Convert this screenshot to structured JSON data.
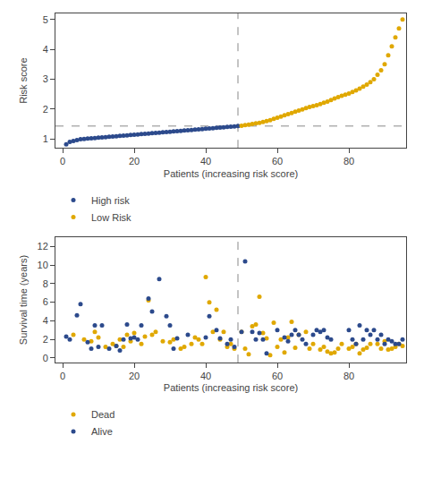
{
  "chart_data": [
    {
      "type": "scatter",
      "xlabel": "Patients (increasing risk score)",
      "ylabel": "Risk score",
      "xlim": [
        -2,
        96
      ],
      "xticks": [
        0,
        20,
        40,
        60,
        80
      ],
      "ylim": [
        0.7,
        5.2
      ],
      "yticks": [
        1,
        2,
        3,
        4,
        5
      ],
      "grid": false,
      "legend": "bottom",
      "reference_lines": {
        "x": 49,
        "y": 1.43,
        "color": "#888888",
        "line_style": "dashed"
      },
      "series": [
        {
          "name": "High risk",
          "color": "#2c4a8c",
          "marker": "circle",
          "x": [
            1,
            2,
            3,
            4,
            5,
            6,
            7,
            8,
            9,
            10,
            11,
            12,
            13,
            14,
            15,
            16,
            17,
            18,
            19,
            20,
            21,
            22,
            23,
            24,
            25,
            26,
            27,
            28,
            29,
            30,
            31,
            32,
            33,
            34,
            35,
            36,
            37,
            38,
            39,
            40,
            41,
            42,
            43,
            44,
            45,
            46,
            47,
            48,
            49
          ],
          "values": [
            0.82,
            0.9,
            0.93,
            0.96,
            0.99,
            1.0,
            1.01,
            1.02,
            1.03,
            1.04,
            1.05,
            1.06,
            1.07,
            1.08,
            1.09,
            1.1,
            1.11,
            1.12,
            1.13,
            1.14,
            1.15,
            1.16,
            1.17,
            1.18,
            1.19,
            1.2,
            1.21,
            1.22,
            1.23,
            1.24,
            1.25,
            1.26,
            1.27,
            1.28,
            1.29,
            1.3,
            1.31,
            1.32,
            1.33,
            1.34,
            1.35,
            1.36,
            1.37,
            1.38,
            1.39,
            1.4,
            1.41,
            1.42,
            1.43
          ]
        },
        {
          "name": "Low Risk",
          "color": "#e0a800",
          "marker": "circle",
          "x": [
            50,
            51,
            52,
            53,
            54,
            55,
            56,
            57,
            58,
            59,
            60,
            61,
            62,
            63,
            64,
            65,
            66,
            67,
            68,
            69,
            70,
            71,
            72,
            73,
            74,
            75,
            76,
            77,
            78,
            79,
            80,
            81,
            82,
            83,
            84,
            85,
            86,
            87,
            88,
            89,
            90,
            91,
            92,
            93,
            94,
            95
          ],
          "values": [
            1.44,
            1.46,
            1.48,
            1.5,
            1.52,
            1.54,
            1.57,
            1.6,
            1.63,
            1.67,
            1.71,
            1.75,
            1.79,
            1.83,
            1.87,
            1.91,
            1.95,
            1.99,
            2.03,
            2.07,
            2.1,
            2.13,
            2.17,
            2.21,
            2.25,
            2.3,
            2.35,
            2.4,
            2.44,
            2.48,
            2.52,
            2.57,
            2.62,
            2.68,
            2.75,
            2.82,
            2.9,
            3.0,
            3.15,
            3.3,
            3.5,
            3.8,
            4.1,
            4.4,
            4.7,
            5.0
          ]
        }
      ]
    },
    {
      "type": "scatter",
      "xlabel": "Patients (increasing risk score)",
      "ylabel": "Survival time (years)",
      "xlim": [
        -2,
        96
      ],
      "xticks": [
        0,
        20,
        40,
        60,
        80
      ],
      "ylim": [
        -0.5,
        13
      ],
      "yticks": [
        0,
        2,
        4,
        6,
        8,
        10,
        12
      ],
      "grid": false,
      "legend": "bottom",
      "reference_lines": {
        "x": 49,
        "color": "#888888",
        "line_style": "dashed"
      },
      "series": [
        {
          "name": "Dead",
          "color": "#e0a800",
          "marker": "circle",
          "x": [
            3,
            6,
            8,
            9,
            10,
            12,
            14,
            15,
            16,
            17,
            18,
            19,
            20,
            22,
            23,
            24,
            25,
            26,
            28,
            30,
            31,
            33,
            34,
            36,
            37,
            38,
            39,
            40,
            41,
            42,
            43,
            44,
            45,
            46,
            47,
            48,
            50,
            51,
            52,
            53,
            54,
            55,
            56,
            57,
            58,
            59,
            60,
            61,
            62,
            63,
            64,
            65,
            66,
            68,
            69,
            70,
            72,
            73,
            74,
            75,
            76,
            77,
            78,
            80,
            81,
            82,
            83,
            84,
            85,
            86,
            88,
            89,
            90,
            91,
            92,
            93,
            94,
            95
          ],
          "values": [
            2.5,
            2.0,
            1.8,
            2.8,
            2.2,
            1.2,
            1.5,
            1.3,
            2.0,
            1.2,
            2.5,
            1.8,
            2.7,
            1.5,
            2.3,
            6.2,
            2.5,
            2.8,
            1.8,
            1.7,
            2.0,
            1.0,
            1.2,
            1.5,
            2.2,
            2.0,
            1.5,
            8.7,
            6.0,
            2.8,
            5.2,
            2.0,
            2.8,
            1.2,
            1.5,
            1.0,
            2.8,
            1.0,
            0.4,
            3.4,
            3.6,
            6.6,
            2.7,
            2.1,
            0.3,
            3.8,
            1.2,
            2.0,
            0.6,
            2.2,
            3.9,
            1.1,
            2.5,
            2.8,
            1.0,
            1.5,
            0.9,
            1.2,
            0.7,
            0.5,
            0.6,
            1.0,
            1.5,
            1.0,
            1.2,
            1.5,
            0.5,
            0.9,
            1.1,
            1.5,
            1.5,
            1.0,
            1.8,
            0.9,
            1.0,
            1.2,
            1.5,
            1.3
          ]
        },
        {
          "name": "Alive",
          "color": "#2c4a8c",
          "marker": "circle",
          "x": [
            1,
            2,
            4,
            5,
            7,
            8,
            9,
            10,
            11,
            13,
            15,
            16,
            17,
            18,
            19,
            20,
            21,
            22,
            24,
            25,
            27,
            29,
            30,
            31,
            32,
            35,
            40,
            41,
            43,
            44,
            46,
            47,
            48,
            50,
            51,
            53,
            54,
            55,
            56,
            57,
            60,
            62,
            63,
            64,
            65,
            66,
            67,
            68,
            70,
            71,
            72,
            73,
            74,
            75,
            80,
            81,
            82,
            83,
            84,
            85,
            86,
            87,
            88,
            89,
            90,
            91,
            92,
            93,
            94,
            95
          ],
          "values": [
            2.3,
            2.0,
            4.6,
            5.8,
            1.7,
            1.0,
            3.5,
            1.2,
            3.5,
            1.0,
            1.3,
            0.8,
            2.0,
            3.6,
            2.1,
            2.2,
            2.0,
            3.5,
            6.4,
            5.0,
            8.5,
            4.5,
            3.5,
            1.0,
            2.1,
            2.5,
            2.2,
            4.5,
            3.0,
            2.1,
            1.5,
            2.0,
            1.2,
            2.8,
            10.4,
            2.8,
            2.0,
            2.7,
            2.0,
            0.5,
            3.0,
            2.2,
            1.8,
            2.5,
            3.0,
            2.5,
            2.0,
            1.5,
            2.5,
            3.0,
            2.8,
            3.0,
            2.2,
            2.0,
            3.0,
            2.0,
            1.5,
            3.5,
            2.0,
            3.0,
            2.5,
            3.0,
            2.0,
            2.5,
            1.5,
            2.0,
            1.8,
            1.5,
            1.5,
            2.0
          ]
        }
      ]
    }
  ]
}
